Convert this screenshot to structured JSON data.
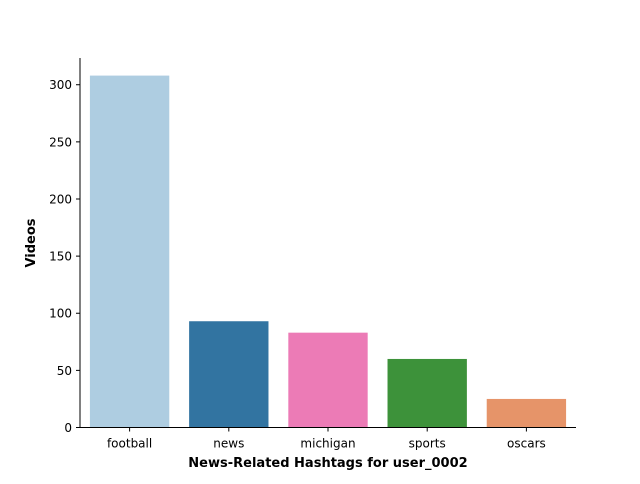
{
  "chart_data": {
    "type": "bar",
    "categories": [
      "football",
      "news",
      "michigan",
      "sports",
      "oscars"
    ],
    "values": [
      308,
      93,
      83,
      60,
      25
    ],
    "colors": [
      "#aecde1",
      "#3274a1",
      "#ec7bb6",
      "#3d923a",
      "#e69469"
    ],
    "xlabel": "News-Related Hashtags for user_0002",
    "ylabel": "Videos",
    "ylim": [
      0,
      323.4
    ],
    "yticks": [
      0,
      50,
      100,
      150,
      200,
      250,
      300
    ],
    "grid": false,
    "legend": "none"
  }
}
